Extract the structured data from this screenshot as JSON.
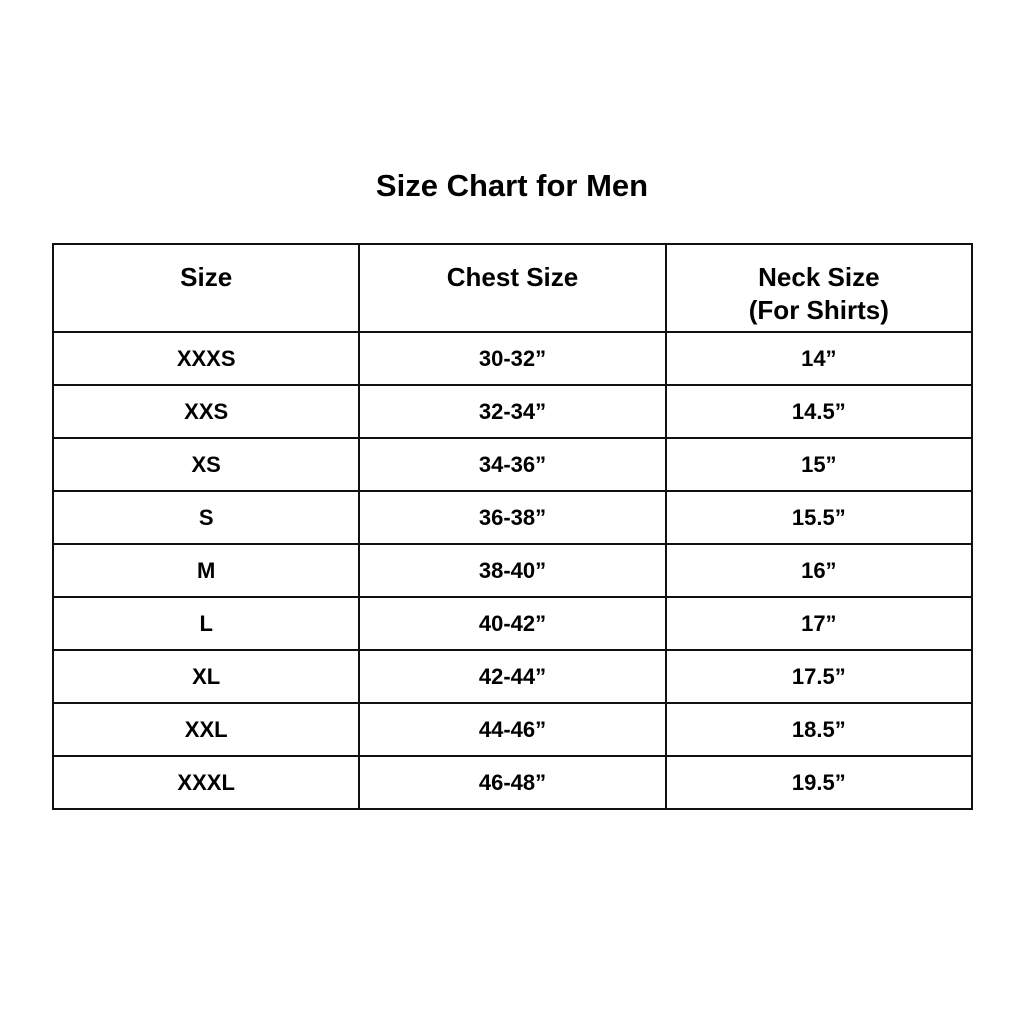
{
  "title": "Size Chart for Men",
  "headers": [
    "Size",
    "Chest Size",
    "Neck Size",
    "(For Shirts)"
  ],
  "rows": [
    [
      "XXXS",
      "30-32”",
      "14”"
    ],
    [
      "XXS",
      "32-34”",
      "14.5”"
    ],
    [
      "XS",
      "34-36”",
      "15”"
    ],
    [
      "S",
      "36-38”",
      "15.5”"
    ],
    [
      "M",
      "38-40”",
      "16”"
    ],
    [
      "L",
      "40-42”",
      "17”"
    ],
    [
      "XL",
      "42-44”",
      "17.5”"
    ],
    [
      "XXL",
      "44-46”",
      "18.5”"
    ],
    [
      "XXXL",
      "46-48”",
      "19.5”"
    ]
  ]
}
